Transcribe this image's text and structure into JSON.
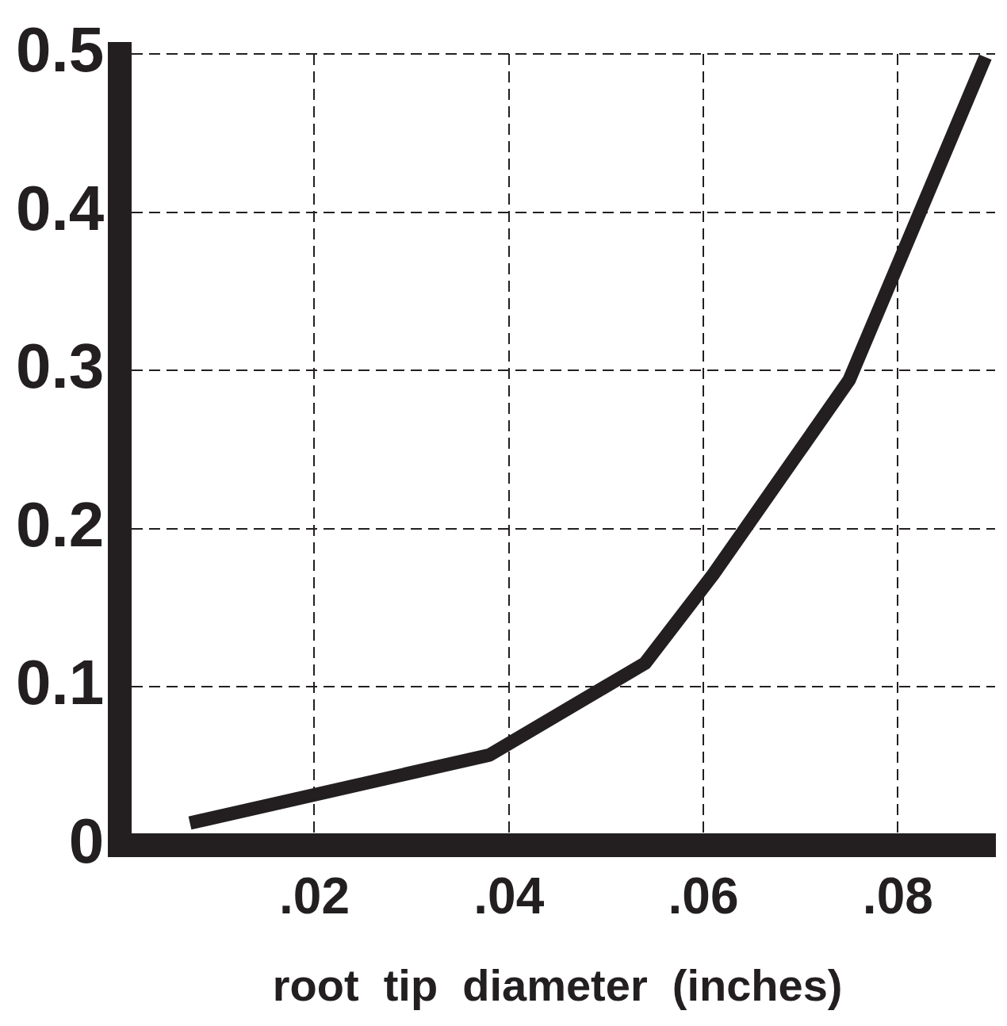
{
  "chart_data": {
    "type": "line",
    "xlabel": "root  tip  diameter  (inches)",
    "series": [
      {
        "color": "#231f20",
        "x": [
          0.0072,
          0.038,
          0.054,
          0.061,
          0.075,
          0.089
        ],
        "values": [
          0.014,
          0.057,
          0.115,
          0.171,
          0.294,
          0.498
        ]
      }
    ],
    "xlim": [
      0,
      0.09
    ],
    "ylim": [
      0,
      0.5
    ],
    "xticks": [
      {
        "value": 0.02,
        "label": ".02"
      },
      {
        "value": 0.04,
        "label": ".04"
      },
      {
        "value": 0.06,
        "label": ".06"
      },
      {
        "value": 0.08,
        "label": ".08"
      }
    ],
    "yticks": [
      {
        "value": 0,
        "label": "0"
      },
      {
        "value": 0.1,
        "label": "0.1"
      },
      {
        "value": 0.2,
        "label": "0.2"
      },
      {
        "value": 0.3,
        "label": "0.3"
      },
      {
        "value": 0.4,
        "label": "0.4"
      },
      {
        "value": 0.5,
        "label": "0.5"
      }
    ],
    "grid": true,
    "marker": "none",
    "line_style": "solid"
  }
}
